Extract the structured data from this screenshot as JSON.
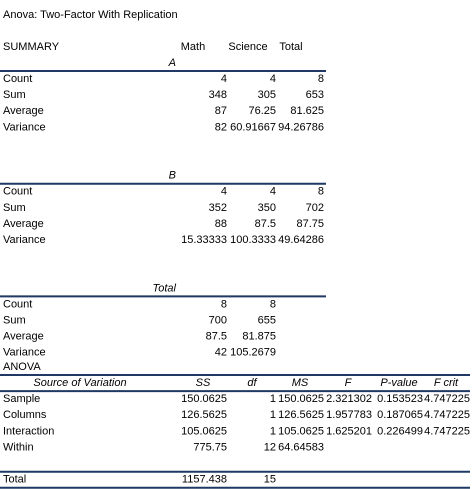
{
  "title": "Anova: Two-Factor With Replication",
  "summary": {
    "header": [
      "SUMMARY",
      "Math",
      "Science",
      "Total"
    ],
    "groups": [
      {
        "label": "A",
        "rows": [
          {
            "label": "Count",
            "values": [
              4,
              4,
              8
            ]
          },
          {
            "label": "Sum",
            "values": [
              348,
              305,
              653
            ]
          },
          {
            "label": "Average",
            "values": [
              87,
              76.25,
              81.625
            ]
          },
          {
            "label": "Variance",
            "values": [
              82,
              60.91667,
              94.26786
            ]
          }
        ]
      },
      {
        "label": "B",
        "rows": [
          {
            "label": "Count",
            "values": [
              4,
              4,
              8
            ]
          },
          {
            "label": "Sum",
            "values": [
              352,
              350,
              702
            ]
          },
          {
            "label": "Average",
            "values": [
              88,
              87.5,
              87.75
            ]
          },
          {
            "label": "Variance",
            "values": [
              15.33333,
              100.3333,
              49.64286
            ]
          }
        ]
      },
      {
        "label": "Total",
        "rows": [
          {
            "label": "Count",
            "values": [
              8,
              8
            ]
          },
          {
            "label": "Sum",
            "values": [
              700,
              655
            ]
          },
          {
            "label": "Average",
            "values": [
              87.5,
              81.875
            ]
          },
          {
            "label": "Variance",
            "values": [
              42,
              105.2679
            ]
          }
        ]
      }
    ]
  },
  "anova": {
    "title": "ANOVA",
    "header": [
      "Source of Variation",
      "SS",
      "df",
      "MS",
      "F",
      "P-value",
      "F crit"
    ],
    "rows": [
      {
        "label": "Sample",
        "values": [
          150.0625,
          1,
          150.0625,
          2.321302,
          0.153523,
          4.747225
        ]
      },
      {
        "label": "Columns",
        "values": [
          126.5625,
          1,
          126.5625,
          1.957783,
          0.187065,
          4.747225
        ]
      },
      {
        "label": "Interaction",
        "values": [
          105.0625,
          1,
          105.0625,
          1.625201,
          0.226499,
          4.747225
        ]
      },
      {
        "label": "Within",
        "values": [
          775.75,
          12,
          64.64583
        ]
      }
    ],
    "total": {
      "label": "Total",
      "values": [
        1157.438,
        15
      ]
    }
  }
}
